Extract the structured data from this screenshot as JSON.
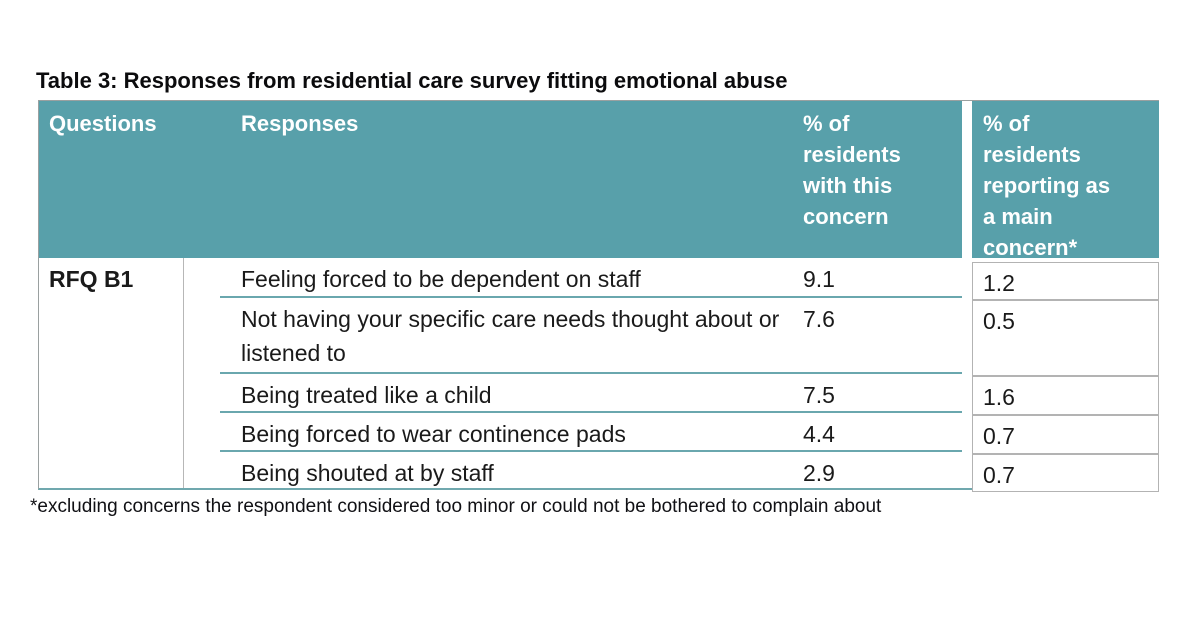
{
  "page": {
    "title": "Table 3: Responses from residential care survey fitting emotional abuse",
    "footnote": "*excluding concerns the respondent considered too minor or could not be bothered to complain about"
  },
  "table": {
    "columns": {
      "questions": "Questions",
      "responses": "Responses",
      "pct_with": "% of\nresidents\nwith this\nconcern",
      "pct_main": "% of\nresidents\nreporting as\na main\nconcern*"
    },
    "question_id": "RFQ B1",
    "rows": [
      {
        "response": "Feeling forced to be dependent on staff",
        "pct_with": "9.1",
        "pct_main": "1.2"
      },
      {
        "response": "Not having your specific care needs thought about or listened to",
        "pct_with": "7.6",
        "pct_main": "0.5"
      },
      {
        "response": "Being treated like a child",
        "pct_with": "7.5",
        "pct_main": "1.6"
      },
      {
        "response": "Being forced to wear continence pads",
        "pct_with": "4.4",
        "pct_main": "0.7"
      },
      {
        "response": "Being shouted at by staff",
        "pct_with": "2.9",
        "pct_main": "0.7"
      }
    ]
  },
  "colors": {
    "header_bg": "#58a0aa",
    "header_text": "#ffffff",
    "row_divider_teal": "#6aa7ae",
    "grid_border_gray": "#b3b3b3",
    "body_text": "#1a1a1a"
  }
}
